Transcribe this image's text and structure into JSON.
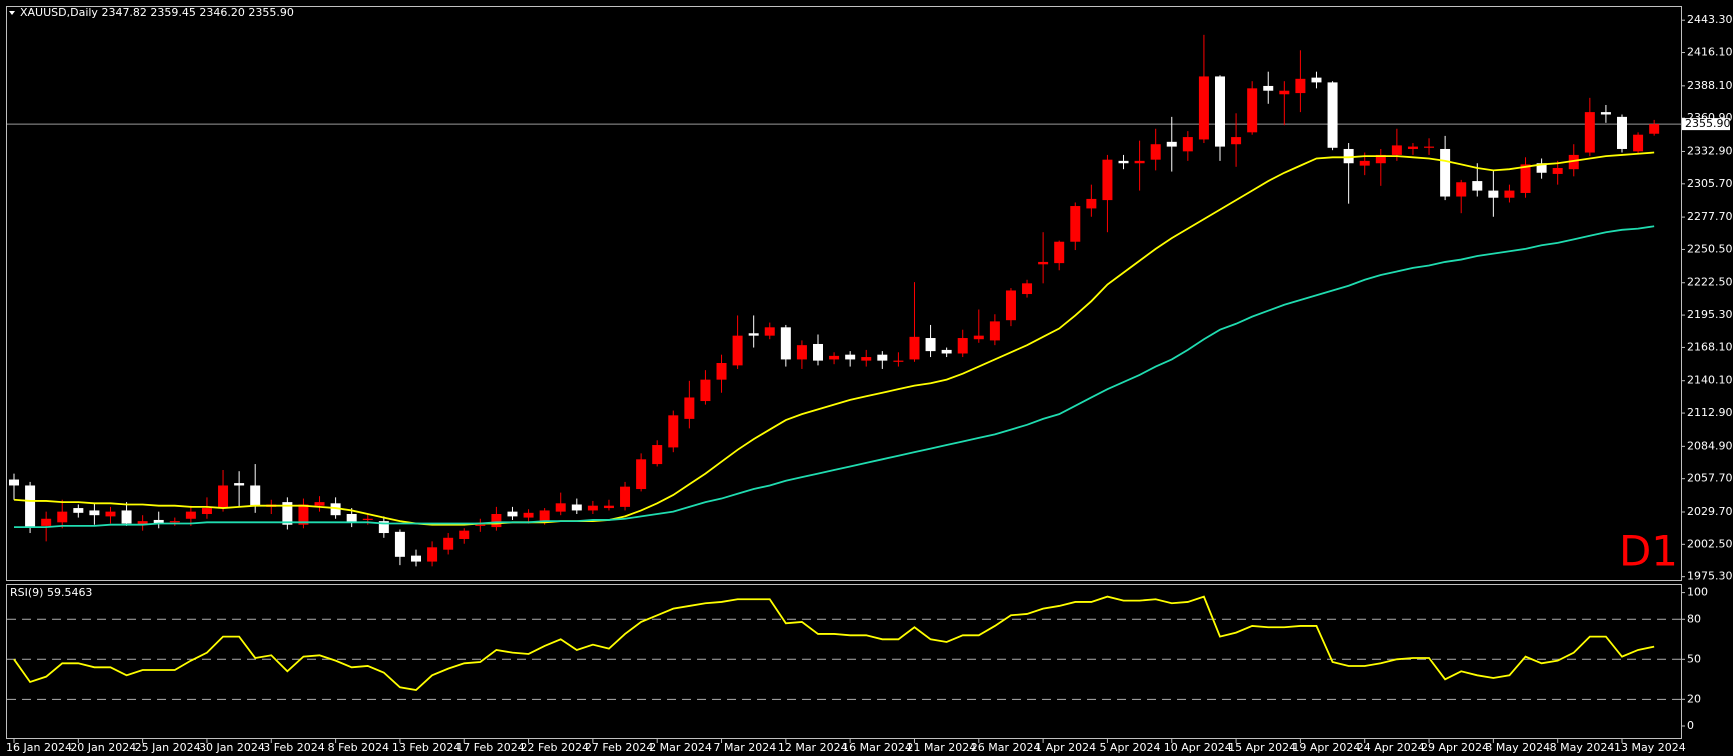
{
  "chart_data": [
    {
      "type": "candlestick",
      "title": "XAUUSD,Daily  2347.82 2359.45 2346.20 2355.90",
      "timeframe": "D1",
      "categories": [
        "16 Jan 2024",
        null,
        null,
        null,
        "20 Jan 2024",
        null,
        null,
        null,
        "25 Jan 2024",
        null,
        null,
        null,
        "30 Jan 2024",
        null,
        null,
        null,
        "3 Feb 2024",
        null,
        null,
        null,
        "8 Feb 2024",
        null,
        null,
        null,
        "13 Feb 2024",
        null,
        null,
        null,
        "17 Feb 2024",
        null,
        null,
        null,
        "22 Feb 2024",
        null,
        null,
        null,
        "27 Feb 2024",
        null,
        null,
        null,
        "2 Mar 2024",
        null,
        null,
        null,
        "7 Mar 2024",
        null,
        null,
        null,
        "12 Mar 2024",
        null,
        null,
        null,
        "16 Mar 2024",
        null,
        null,
        null,
        "21 Mar 2024",
        null,
        null,
        null,
        "26 Mar 2024",
        null,
        null,
        null,
        "1 Apr 2024",
        null,
        null,
        null,
        "5 Apr 2024",
        null,
        null,
        null,
        "10 Apr 2024",
        null,
        null,
        null,
        "15 Apr 2024",
        null,
        null,
        null,
        "19 Apr 2024",
        null,
        null,
        null,
        "24 Apr 2024",
        null,
        null,
        null,
        "29 Apr 2024",
        null,
        null,
        null,
        "3 May 2024",
        null,
        null,
        null,
        "8 May 2024",
        null,
        null,
        null,
        "13 May 2024",
        null,
        null
      ],
      "open": [
        2057,
        2052,
        2018,
        2021,
        2033,
        2031,
        2026,
        2031,
        2019,
        2023,
        2021,
        2024,
        2028,
        2033,
        2054,
        2052,
        2034,
        2038,
        2019,
        2035,
        2037,
        2028,
        2023,
        2022,
        2013,
        1993,
        1988,
        1998,
        2007,
        2018,
        2017,
        2030,
        2025,
        2022,
        2030,
        2036,
        2031,
        2033,
        2034,
        2049,
        2070,
        2084,
        2108,
        2123,
        2141,
        2153,
        2180,
        2178,
        2185,
        2158,
        2171,
        2158,
        2162,
        2157,
        2162,
        2156,
        2158,
        2176,
        2166,
        2163,
        2175,
        2174,
        2191,
        2213,
        2238,
        2239,
        2257,
        2285,
        2292,
        2325,
        2323,
        2326,
        2341,
        2333,
        2343,
        2396,
        2339,
        2349,
        2388,
        2381,
        2382,
        2395,
        2391,
        2335,
        2321,
        2323,
        2330,
        2335,
        2336,
        2335,
        2295,
        2308,
        2300,
        2294,
        2298,
        2323,
        2314,
        2318,
        2332,
        2366,
        2362,
        2333,
        2347.82
      ],
      "high": [
        2062,
        2055,
        2030,
        2040,
        2036,
        2037,
        2034,
        2038,
        2027,
        2030,
        2025,
        2035,
        2042,
        2065,
        2064,
        2070,
        2040,
        2042,
        2041,
        2043,
        2042,
        2033,
        2028,
        2026,
        2015,
        1998,
        2005,
        2012,
        2016,
        2024,
        2034,
        2034,
        2032,
        2033,
        2046,
        2041,
        2039,
        2040,
        2055,
        2079,
        2090,
        2115,
        2140,
        2149,
        2162,
        2195,
        2195,
        2189,
        2187,
        2174,
        2179,
        2164,
        2165,
        2166,
        2165,
        2164,
        2223,
        2187,
        2168,
        2183,
        2200,
        2196,
        2218,
        2225,
        2265,
        2258,
        2290,
        2305,
        2330,
        2330,
        2342,
        2352,
        2362,
        2350,
        2431,
        2397,
        2365,
        2392,
        2400,
        2392,
        2418,
        2400,
        2392,
        2340,
        2332,
        2335,
        2352,
        2340,
        2344,
        2346,
        2309,
        2323,
        2317,
        2305,
        2328,
        2327,
        2325,
        2339,
        2378,
        2372,
        2364,
        2349,
        2359.45
      ],
      "low": [
        2040,
        2012,
        2005,
        2016,
        2025,
        2019,
        2020,
        2018,
        2014,
        2016,
        2018,
        2018,
        2024,
        2030,
        2034,
        2029,
        2028,
        2015,
        2016,
        2030,
        2024,
        2017,
        2019,
        2008,
        1985,
        1984,
        1984,
        1994,
        2003,
        2013,
        2014,
        2023,
        2020,
        2019,
        2027,
        2028,
        2028,
        2031,
        2031,
        2047,
        2068,
        2080,
        2100,
        2120,
        2130,
        2150,
        2168,
        2175,
        2152,
        2150,
        2153,
        2154,
        2152,
        2152,
        2150,
        2152,
        2156,
        2160,
        2160,
        2160,
        2172,
        2170,
        2186,
        2210,
        2222,
        2233,
        2250,
        2278,
        2265,
        2318,
        2300,
        2317,
        2316,
        2325,
        2340,
        2325,
        2320,
        2347,
        2373,
        2355,
        2366,
        2386,
        2334,
        2289,
        2313,
        2304,
        2325,
        2330,
        2330,
        2292,
        2281,
        2295,
        2278,
        2290,
        2294,
        2310,
        2305,
        2312,
        2329,
        2357,
        2332,
        2331,
        2346.2
      ],
      "close": [
        2052,
        2017,
        2024,
        2030,
        2029,
        2027,
        2030,
        2020,
        2022,
        2020,
        2022,
        2030,
        2033,
        2052,
        2052,
        2035,
        2036,
        2019,
        2036,
        2038,
        2027,
        2021,
        2024,
        2012,
        1992,
        1988,
        2000,
        2008,
        2014,
        2019,
        2028,
        2026,
        2029,
        2031,
        2037,
        2031,
        2035,
        2035,
        2051,
        2074,
        2086,
        2111,
        2126,
        2141,
        2155,
        2178,
        2178,
        2185,
        2158,
        2170,
        2157,
        2161,
        2158,
        2160,
        2157,
        2157,
        2177,
        2165,
        2163,
        2176,
        2178,
        2190,
        2216,
        2222,
        2240,
        2257,
        2287,
        2293,
        2326,
        2323,
        2325,
        2339,
        2337,
        2345,
        2396,
        2337,
        2345,
        2386,
        2384,
        2384,
        2394,
        2391,
        2336,
        2323,
        2325,
        2330,
        2338,
        2337,
        2337,
        2295,
        2307,
        2300,
        2294,
        2300,
        2322,
        2315,
        2319,
        2330,
        2366,
        2364,
        2335,
        2347,
        2355.9
      ],
      "up_color": "#ff0000",
      "down_color": "#ffffff",
      "series": [
        {
          "color": "#ffff00",
          "values": [
            2040,
            2039,
            2039,
            2038,
            2038,
            2037,
            2037,
            2036,
            2036,
            2035,
            2035,
            2034,
            2034,
            2033,
            2034,
            2035,
            2035,
            2035,
            2035,
            2034,
            2033,
            2031,
            2028,
            2025,
            2022,
            2020,
            2019,
            2019,
            2019,
            2020,
            2020,
            2021,
            2021,
            2021,
            2022,
            2022,
            2022,
            2023,
            2026,
            2031,
            2037,
            2044,
            2053,
            2062,
            2072,
            2082,
            2091,
            2099,
            2107,
            2112,
            2116,
            2120,
            2124,
            2127,
            2130,
            2133,
            2136,
            2138,
            2141,
            2146,
            2152,
            2158,
            2164,
            2170,
            2177,
            2184,
            2195,
            2207,
            2221,
            2231,
            2241,
            2251,
            2260,
            2268,
            2276,
            2284,
            2292,
            2300,
            2308,
            2315,
            2321,
            2327,
            2328,
            2328,
            2329,
            2329,
            2329,
            2328,
            2327,
            2325,
            2322,
            2319,
            2317,
            2318,
            2320,
            2322,
            2323,
            2325,
            2327,
            2329,
            2330,
            2331,
            2332
          ]
        },
        {
          "color": "#20dcb0",
          "values": [
            2017,
            2017,
            2017,
            2018,
            2018,
            2018,
            2019,
            2019,
            2019,
            2020,
            2020,
            2020,
            2021,
            2021,
            2021,
            2021,
            2021,
            2021,
            2021,
            2021,
            2021,
            2021,
            2021,
            2020,
            2020,
            2020,
            2020,
            2020,
            2020,
            2020,
            2021,
            2021,
            2021,
            2022,
            2022,
            2022,
            2023,
            2023,
            2024,
            2026,
            2028,
            2030,
            2034,
            2038,
            2041,
            2045,
            2049,
            2052,
            2056,
            2059,
            2062,
            2065,
            2068,
            2071,
            2074,
            2077,
            2080,
            2083,
            2086,
            2089,
            2092,
            2095,
            2099,
            2103,
            2108,
            2112,
            2119,
            2126,
            2133,
            2139,
            2145,
            2152,
            2158,
            2166,
            2175,
            2183,
            2188,
            2194,
            2199,
            2204,
            2208,
            2212,
            2216,
            2220,
            2225,
            2229,
            2232,
            2235,
            2237,
            2240,
            2242,
            2245,
            2247,
            2249,
            2251,
            2254,
            2256,
            2259,
            2262,
            2265,
            2267,
            2268,
            2270
          ]
        }
      ],
      "ylim": [
        1972.5,
        2454.4
      ],
      "yticks": [
        {
          "value": 2443.3,
          "label": "2443.30"
        },
        {
          "value": 2416.1,
          "label": "2416.10"
        },
        {
          "value": 2388.1,
          "label": "2388.10"
        },
        {
          "value": 2360.9,
          "label": "2360.90"
        },
        {
          "value": 2332.9,
          "label": "2332.90"
        },
        {
          "value": 2305.7,
          "label": "2305.70"
        },
        {
          "value": 2277.7,
          "label": "2277.70"
        },
        {
          "value": 2250.5,
          "label": "2250.50"
        },
        {
          "value": 2222.5,
          "label": "2222.50"
        },
        {
          "value": 2195.3,
          "label": "2195.30"
        },
        {
          "value": 2168.1,
          "label": "2168.10"
        },
        {
          "value": 2140.1,
          "label": "2140.10"
        },
        {
          "value": 2112.9,
          "label": "2112.90"
        },
        {
          "value": 2084.9,
          "label": "2084.90"
        },
        {
          "value": 2057.7,
          "label": "2057.70"
        },
        {
          "value": 2029.7,
          "label": "2029.70"
        },
        {
          "value": 2002.5,
          "label": "2002.50"
        },
        {
          "value": 1975.3,
          "label": "1975.30"
        }
      ],
      "price_line": {
        "value": 2355.9,
        "label": "2355.90"
      }
    },
    {
      "type": "line",
      "title": "RSI(9) 59.5463",
      "series": [
        {
          "color": "#ffff00",
          "values": [
            50,
            33,
            37,
            47,
            47,
            44,
            44,
            38,
            42,
            42,
            42,
            49,
            55,
            67,
            67,
            51,
            53,
            41,
            52,
            53,
            49,
            44,
            45,
            40,
            29,
            27,
            38,
            43,
            47,
            48,
            57,
            55,
            54,
            60,
            65,
            57,
            61,
            58,
            69,
            78,
            83,
            88,
            90,
            92,
            93,
            95,
            95,
            95,
            77,
            78,
            69,
            69,
            68,
            68,
            65,
            65,
            74,
            65,
            63,
            68,
            68,
            75,
            83,
            84,
            88,
            90,
            93,
            93,
            97,
            94,
            94,
            95,
            92,
            93,
            97,
            67,
            70,
            75,
            74,
            74,
            75,
            75,
            48,
            45,
            45,
            47,
            50,
            51,
            51,
            35,
            41,
            38,
            36,
            38,
            52,
            47,
            49,
            55,
            67,
            67,
            52,
            57,
            59.5
          ]
        }
      ],
      "ylim": [
        -9,
        105.7
      ],
      "yticks": [
        0,
        20,
        50,
        80,
        100
      ],
      "levels": [
        20,
        50,
        80
      ]
    }
  ]
}
